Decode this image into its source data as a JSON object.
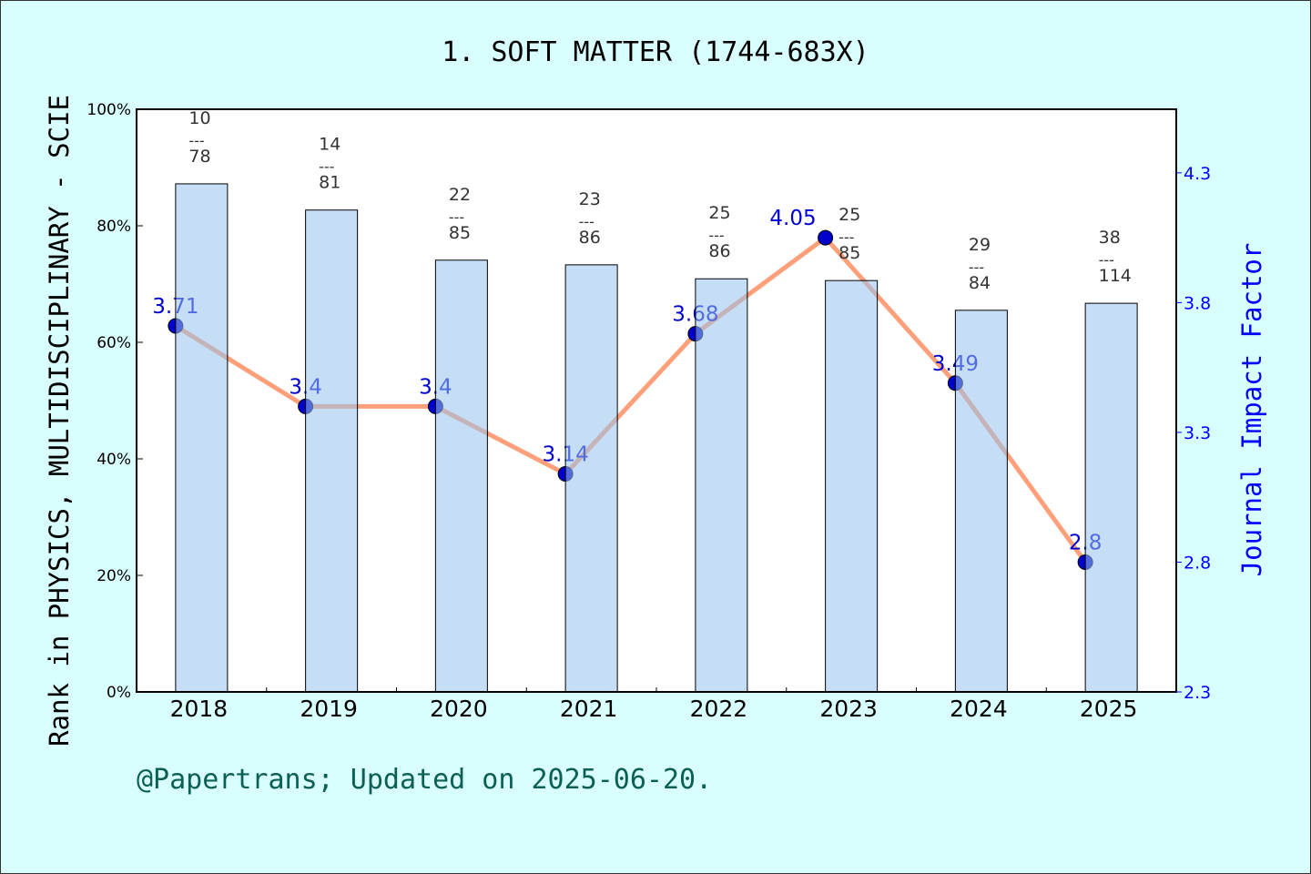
{
  "chart_data": {
    "type": "bar+line",
    "title": "1. SOFT MATTER (1744-683X)",
    "ylabel_left": "Rank in PHYSICS, MULTIDISCIPLINARY - SCIE",
    "ylabel_right": "Journal Impact Factor",
    "categories": [
      "2018",
      "2019",
      "2020",
      "2021",
      "2022",
      "2023",
      "2024",
      "2025"
    ],
    "bars": {
      "values_percent": [
        87.2,
        82.7,
        74.1,
        73.3,
        70.9,
        70.6,
        65.5,
        66.7
      ],
      "rank": [
        "10",
        "14",
        "22",
        "23",
        "25",
        "25",
        "29",
        "38"
      ],
      "total": [
        "78",
        "81",
        "85",
        "86",
        "86",
        "85",
        "84",
        "114"
      ],
      "separator": "---",
      "color": "#c5e0f7"
    },
    "line": {
      "values": [
        3.71,
        3.4,
        3.4,
        3.14,
        3.68,
        4.05,
        3.49,
        2.8
      ],
      "labels": [
        "3.71",
        "3.4",
        "3.4",
        "3.14",
        "3.68",
        "4.05",
        "3.49",
        "2.8"
      ],
      "color": "#ffa07a",
      "marker_color": "#0000cd"
    },
    "left_axis": {
      "ylim": [
        0,
        100
      ],
      "ticks": [
        "0%",
        "20%",
        "40%",
        "60%",
        "80%",
        "100%"
      ]
    },
    "right_axis": {
      "ylim": [
        2.3,
        4.545
      ],
      "ticks": [
        "2.3",
        "2.8",
        "3.3",
        "3.8",
        "4.3"
      ],
      "color": "#0000ff"
    },
    "grid": false
  },
  "footer": "@Papertrans; Updated on 2025-06-20."
}
